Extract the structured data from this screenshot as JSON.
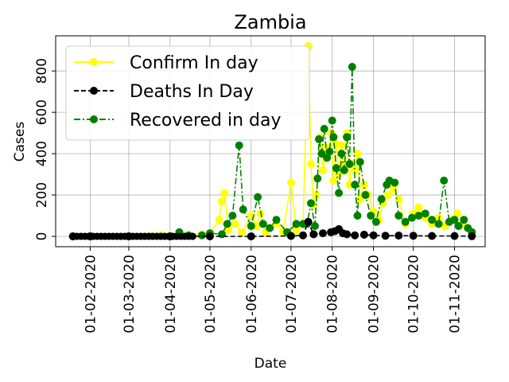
{
  "chart_data": {
    "type": "line",
    "title": "Zambia",
    "xlabel": "Date",
    "ylabel": "Cases",
    "x_ticks": [
      "01-02-2020",
      "01-03-2020",
      "01-04-2020",
      "01-05-2020",
      "01-06-2020",
      "01-07-2020",
      "01-08-2020",
      "01-09-2020",
      "01-10-2020",
      "01-11-2020"
    ],
    "y_ticks": [
      "0",
      "200",
      "400",
      "600",
      "800"
    ],
    "ylim": [
      -50,
      970
    ],
    "xlim": [
      "2020-01-06",
      "2020-11-24"
    ],
    "grid": true,
    "legend_position": "top-left",
    "series": [
      {
        "name": "Confirm In day",
        "color": "#ffff00",
        "line_style": "solid",
        "points": [
          [
            "2020-01-19",
            0
          ],
          [
            "2020-02-01",
            0
          ],
          [
            "2020-03-01",
            0
          ],
          [
            "2020-03-18",
            2
          ],
          [
            "2020-03-25",
            6
          ],
          [
            "2020-04-01",
            3
          ],
          [
            "2020-04-15",
            5
          ],
          [
            "2020-04-25",
            10
          ],
          [
            "2020-05-01",
            12
          ],
          [
            "2020-05-08",
            80
          ],
          [
            "2020-05-10",
            170
          ],
          [
            "2020-05-12",
            210
          ],
          [
            "2020-05-15",
            30
          ],
          [
            "2020-05-20",
            60
          ],
          [
            "2020-05-25",
            20
          ],
          [
            "2020-06-01",
            100
          ],
          [
            "2020-06-05",
            50
          ],
          [
            "2020-06-08",
            110
          ],
          [
            "2020-06-12",
            20
          ],
          [
            "2020-06-20",
            60
          ],
          [
            "2020-06-25",
            20
          ],
          [
            "2020-07-01",
            260
          ],
          [
            "2020-07-05",
            30
          ],
          [
            "2020-07-10",
            60
          ],
          [
            "2020-07-14",
            920
          ],
          [
            "2020-07-16",
            350
          ],
          [
            "2020-07-18",
            150
          ],
          [
            "2020-07-20",
            200
          ],
          [
            "2020-07-23",
            480
          ],
          [
            "2020-07-25",
            320
          ],
          [
            "2020-07-27",
            430
          ],
          [
            "2020-07-29",
            400
          ],
          [
            "2020-07-31",
            500
          ],
          [
            "2020-08-02",
            270
          ],
          [
            "2020-08-04",
            450
          ],
          [
            "2020-08-06",
            300
          ],
          [
            "2020-08-08",
            440
          ],
          [
            "2020-08-10",
            350
          ],
          [
            "2020-08-12",
            500
          ],
          [
            "2020-08-14",
            250
          ],
          [
            "2020-08-16",
            350
          ],
          [
            "2020-08-18",
            320
          ],
          [
            "2020-08-20",
            400
          ],
          [
            "2020-08-22",
            180
          ],
          [
            "2020-08-25",
            250
          ],
          [
            "2020-08-28",
            200
          ],
          [
            "2020-09-01",
            120
          ],
          [
            "2020-09-05",
            80
          ],
          [
            "2020-09-08",
            160
          ],
          [
            "2020-09-12",
            200
          ],
          [
            "2020-09-16",
            230
          ],
          [
            "2020-09-20",
            180
          ],
          [
            "2020-09-25",
            60
          ],
          [
            "2020-10-01",
            110
          ],
          [
            "2020-10-05",
            140
          ],
          [
            "2020-10-10",
            90
          ],
          [
            "2020-10-15",
            60
          ],
          [
            "2020-10-20",
            90
          ],
          [
            "2020-10-25",
            50
          ],
          [
            "2020-10-30",
            80
          ],
          [
            "2020-11-03",
            110
          ],
          [
            "2020-11-07",
            60
          ],
          [
            "2020-11-11",
            40
          ],
          [
            "2020-11-14",
            20
          ]
        ]
      },
      {
        "name": "Deaths In Day",
        "color": "#000000",
        "line_style": "dashed",
        "points": [
          [
            "2020-01-19",
            0
          ],
          [
            "2020-02-01",
            0
          ],
          [
            "2020-03-01",
            0
          ],
          [
            "2020-04-01",
            0
          ],
          [
            "2020-05-01",
            0
          ],
          [
            "2020-06-01",
            0
          ],
          [
            "2020-07-01",
            2
          ],
          [
            "2020-07-10",
            5
          ],
          [
            "2020-07-14",
            70
          ],
          [
            "2020-07-18",
            10
          ],
          [
            "2020-07-25",
            15
          ],
          [
            "2020-07-31",
            20
          ],
          [
            "2020-08-03",
            25
          ],
          [
            "2020-08-06",
            35
          ],
          [
            "2020-08-09",
            15
          ],
          [
            "2020-08-12",
            10
          ],
          [
            "2020-08-18",
            5
          ],
          [
            "2020-08-25",
            8
          ],
          [
            "2020-09-01",
            5
          ],
          [
            "2020-09-10",
            3
          ],
          [
            "2020-09-20",
            4
          ],
          [
            "2020-10-01",
            3
          ],
          [
            "2020-10-15",
            2
          ],
          [
            "2020-11-01",
            2
          ],
          [
            "2020-11-14",
            1
          ]
        ]
      },
      {
        "name": "Recovered in day",
        "color": "#008000",
        "line_style": "dashdot",
        "points": [
          [
            "2020-01-19",
            0
          ],
          [
            "2020-02-01",
            0
          ],
          [
            "2020-03-01",
            0
          ],
          [
            "2020-04-01",
            0
          ],
          [
            "2020-04-08",
            20
          ],
          [
            "2020-04-15",
            5
          ],
          [
            "2020-04-25",
            5
          ],
          [
            "2020-05-01",
            15
          ],
          [
            "2020-05-10",
            10
          ],
          [
            "2020-05-14",
            60
          ],
          [
            "2020-05-18",
            100
          ],
          [
            "2020-05-23",
            440
          ],
          [
            "2020-05-26",
            130
          ],
          [
            "2020-06-01",
            50
          ],
          [
            "2020-06-06",
            190
          ],
          [
            "2020-06-10",
            60
          ],
          [
            "2020-06-15",
            40
          ],
          [
            "2020-06-20",
            80
          ],
          [
            "2020-06-28",
            20
          ],
          [
            "2020-07-05",
            60
          ],
          [
            "2020-07-10",
            60
          ],
          [
            "2020-07-13",
            60
          ],
          [
            "2020-07-16",
            160
          ],
          [
            "2020-07-19",
            50
          ],
          [
            "2020-07-21",
            280
          ],
          [
            "2020-07-22",
            470
          ],
          [
            "2020-07-24",
            400
          ],
          [
            "2020-07-26",
            520
          ],
          [
            "2020-07-28",
            380
          ],
          [
            "2020-07-30",
            410
          ],
          [
            "2020-08-01",
            560
          ],
          [
            "2020-08-02",
            480
          ],
          [
            "2020-08-04",
            330
          ],
          [
            "2020-08-06",
            210
          ],
          [
            "2020-08-08",
            400
          ],
          [
            "2020-08-10",
            320
          ],
          [
            "2020-08-12",
            480
          ],
          [
            "2020-08-14",
            350
          ],
          [
            "2020-08-16",
            820
          ],
          [
            "2020-08-18",
            250
          ],
          [
            "2020-08-20",
            100
          ],
          [
            "2020-08-22",
            360
          ],
          [
            "2020-08-26",
            200
          ],
          [
            "2020-08-30",
            100
          ],
          [
            "2020-09-03",
            70
          ],
          [
            "2020-09-07",
            180
          ],
          [
            "2020-09-11",
            250
          ],
          [
            "2020-09-13",
            270
          ],
          [
            "2020-09-17",
            260
          ],
          [
            "2020-09-20",
            100
          ],
          [
            "2020-09-25",
            70
          ],
          [
            "2020-09-30",
            90
          ],
          [
            "2020-10-05",
            100
          ],
          [
            "2020-10-10",
            110
          ],
          [
            "2020-10-15",
            80
          ],
          [
            "2020-10-20",
            60
          ],
          [
            "2020-10-24",
            270
          ],
          [
            "2020-10-28",
            70
          ],
          [
            "2020-11-01",
            80
          ],
          [
            "2020-11-04",
            50
          ],
          [
            "2020-11-08",
            80
          ],
          [
            "2020-11-11",
            40
          ],
          [
            "2020-11-14",
            20
          ]
        ]
      }
    ]
  }
}
